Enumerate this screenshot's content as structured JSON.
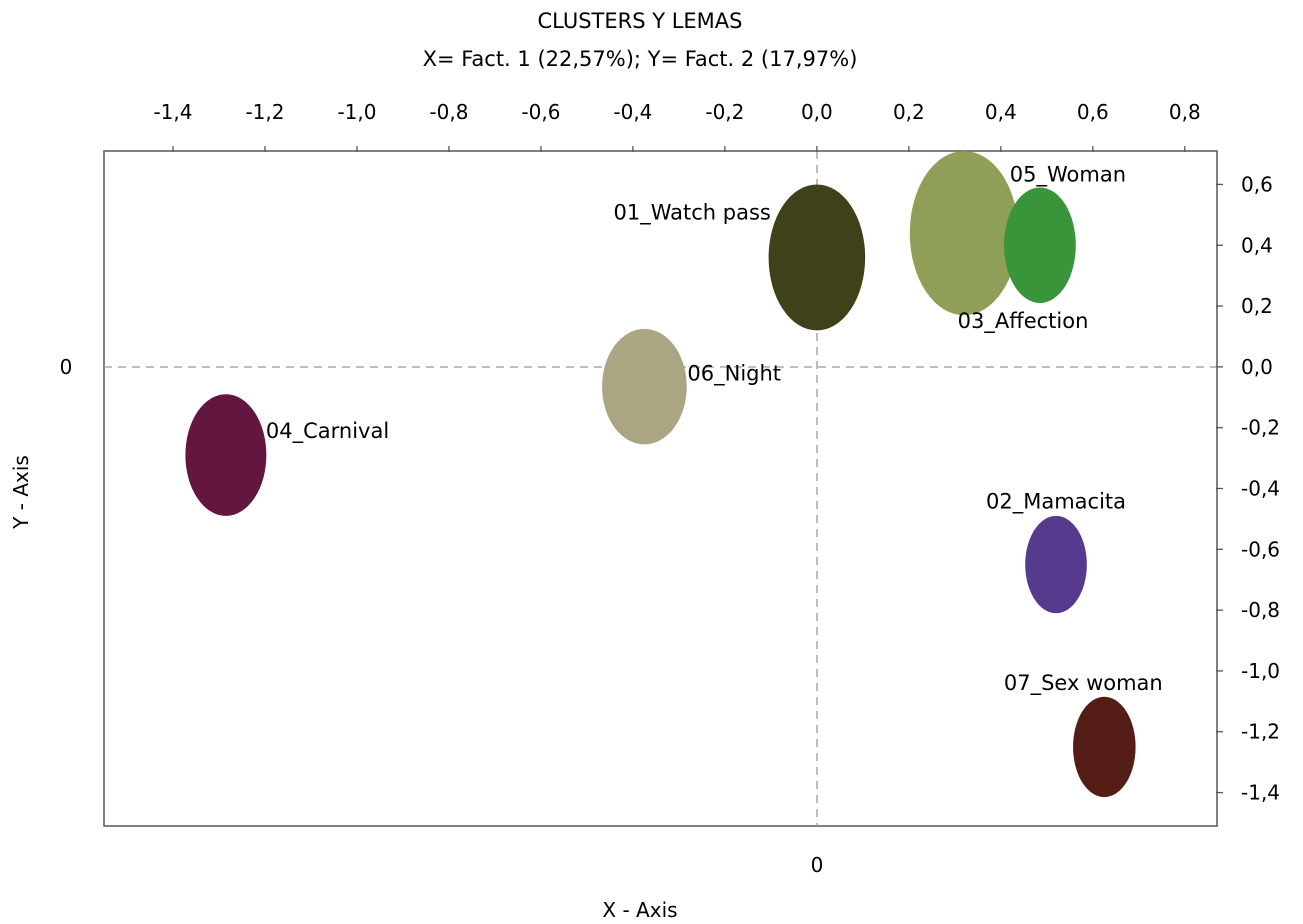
{
  "chart_data": {
    "type": "scatter",
    "title": "CLUSTERS Y LEMAS",
    "subtitle": "X= Fact. 1 (22,57%); Y= Fact. 2 (17,97%)",
    "xlabel": "X - Axis",
    "ylabel": "Y - Axis",
    "xlim": [
      -1.55,
      0.87
    ],
    "ylim": [
      -1.51,
      0.71
    ],
    "x_ticks": [
      "-1,4",
      "-1,2",
      "-1,0",
      "-0,8",
      "-0,6",
      "-0,4",
      "-0,2",
      "0,0",
      "0,2",
      "0,4",
      "0,6",
      "0,8"
    ],
    "y_ticks": [
      "0,6",
      "0,4",
      "0,2",
      "0,0",
      "-0,2",
      "-0,4",
      "-0,6",
      "-0,8",
      "-1,0",
      "-1,2",
      "-1,4"
    ],
    "x_zero_label": "0",
    "y_zero_label": "0",
    "x_tick_position": "top",
    "y_tick_position": "right",
    "grid": false,
    "reference_lines": "dashed at x=0 and y=0",
    "points": [
      {
        "label": "01_Watch pass",
        "x": 0.0,
        "y": 0.36,
        "rx": 0.105,
        "ry": 0.24,
        "color": "#40401a"
      },
      {
        "label": "02_Mamacita",
        "x": 0.52,
        "y": -0.65,
        "rx": 0.067,
        "ry": 0.16,
        "color": "#553a8e"
      },
      {
        "label": "03_Affection",
        "x": 0.32,
        "y": 0.44,
        "rx": 0.118,
        "ry": 0.27,
        "color": "#8f9f57"
      },
      {
        "label": "05_Woman",
        "x": 0.485,
        "y": 0.4,
        "rx": 0.078,
        "ry": 0.19,
        "color": "#3a953a"
      },
      {
        "label": "04_Carnival",
        "x": -1.285,
        "y": -0.29,
        "rx": 0.088,
        "ry": 0.2,
        "color": "#63163f"
      },
      {
        "label": "06_Night",
        "x": -0.375,
        "y": -0.065,
        "rx": 0.092,
        "ry": 0.19,
        "color": "#aaa582"
      },
      {
        "label": "07_Sex woman",
        "x": 0.625,
        "y": -1.25,
        "rx": 0.068,
        "ry": 0.165,
        "color": "#541e16"
      }
    ]
  }
}
